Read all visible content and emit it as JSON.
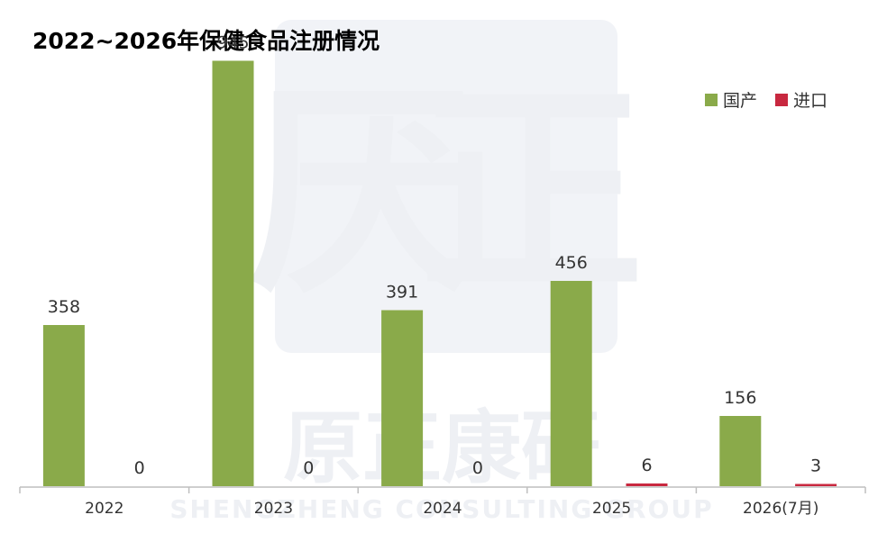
{
  "chart_data": {
    "type": "bar",
    "title": "2022~2026年保健食品注册情况",
    "categories": [
      "2022",
      "2023",
      "2024",
      "2025",
      "2026(7月)"
    ],
    "series": [
      {
        "name": "国产",
        "color": "#8aaa4a",
        "values": [
          358,
          945,
          391,
          456,
          156
        ]
      },
      {
        "name": "进口",
        "color": "#c8283f",
        "values": [
          0,
          0,
          0,
          6,
          3
        ]
      }
    ],
    "xlabel": "",
    "ylabel": "",
    "ylim": [
      0,
      1000
    ],
    "grid": false,
    "legend_position": "top-right"
  },
  "watermark": {
    "logo_text": "原正康研",
    "logo_subtext": "SHENGZHENG CONSULTING GROUP",
    "seal_glyphs": [
      "厌",
      "正"
    ]
  }
}
